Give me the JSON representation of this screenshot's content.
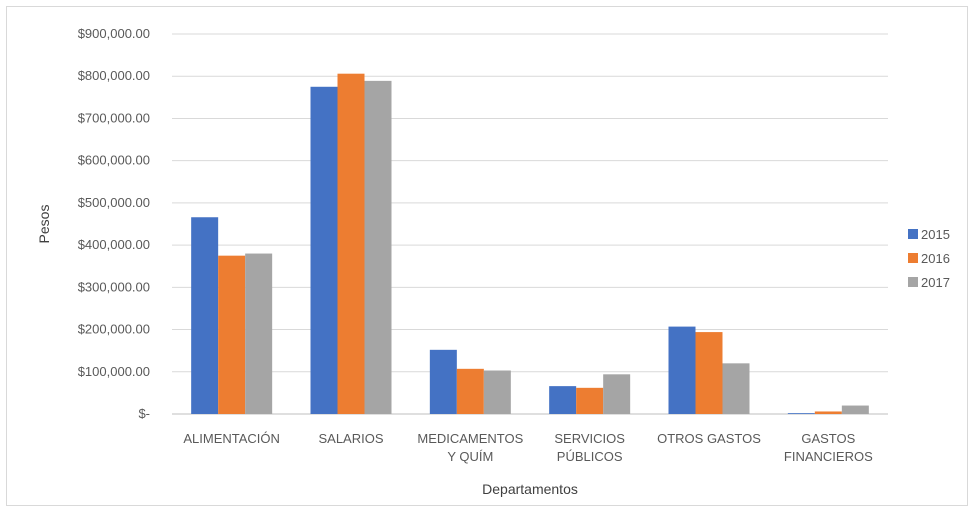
{
  "chart_data": {
    "type": "bar",
    "title": "",
    "xlabel": "Departamentos",
    "ylabel": "Pesos",
    "categories": [
      [
        "ALIMENTACIÓN"
      ],
      [
        "SALARIOS"
      ],
      [
        "MEDICAMENTOS",
        "Y QUÍM"
      ],
      [
        "SERVICIOS",
        "PÚBLICOS"
      ],
      [
        "OTROS GASTOS"
      ],
      [
        "GASTOS",
        "FINANCIEROS"
      ]
    ],
    "series": [
      {
        "name": "2015",
        "color": "#4472C4",
        "values": [
          466000,
          775000,
          152000,
          66000,
          207000,
          2000
        ]
      },
      {
        "name": "2016",
        "color": "#ED7D31",
        "values": [
          375000,
          806000,
          107000,
          62000,
          194000,
          6000
        ]
      },
      {
        "name": "2017",
        "color": "#A5A5A5",
        "values": [
          380000,
          789000,
          103000,
          94000,
          120000,
          20000
        ]
      }
    ],
    "ylim": [
      0,
      900000
    ],
    "y_ticks": [
      0,
      100000,
      200000,
      300000,
      400000,
      500000,
      600000,
      700000,
      800000,
      900000
    ],
    "y_tick_labels": [
      "$-",
      "$100,000.00",
      "$200,000.00",
      "$300,000.00",
      "$400,000.00",
      "$500,000.00",
      "$600,000.00",
      "$700,000.00",
      "$800,000.00",
      "$900,000.00"
    ],
    "grid": true,
    "legend_position": "right"
  }
}
